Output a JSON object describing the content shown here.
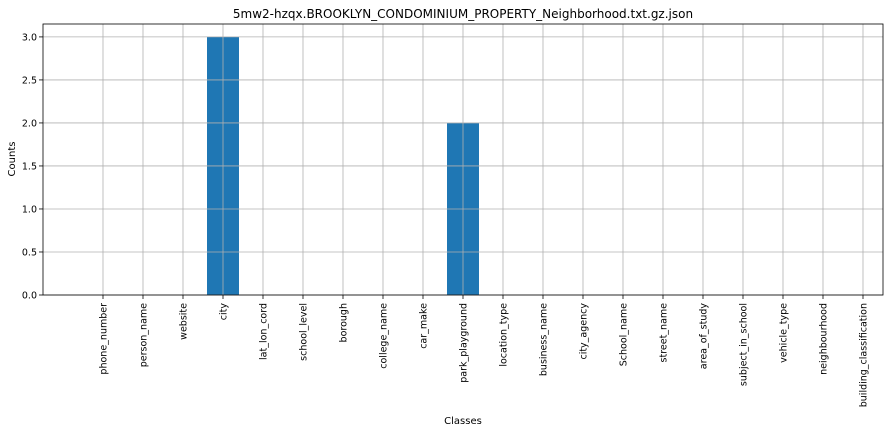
{
  "chart_data": {
    "type": "bar",
    "title": "5mw2-hzqx.BROOKLYN_CONDOMINIUM_PROPERTY_Neighborhood.txt.gz.json",
    "xlabel": "Classes",
    "ylabel": "Counts",
    "categories": [
      "phone_number",
      "person_name",
      "website",
      "city",
      "lat_lon_cord",
      "school_level",
      "borough",
      "college_name",
      "car_make",
      "park_playground",
      "location_type",
      "business_name",
      "city_agency",
      "School_name",
      "street_name",
      "area_of_study",
      "subject_in_school",
      "vehicle_type",
      "neighbourhood",
      "building_classification"
    ],
    "values": [
      0,
      0,
      0,
      3,
      0,
      0,
      0,
      0,
      0,
      2,
      0,
      0,
      0,
      0,
      0,
      0,
      0,
      0,
      0,
      0
    ],
    "ylim": [
      0,
      3.15
    ],
    "yticks": [
      "0.0",
      "0.5",
      "1.0",
      "1.5",
      "2.0",
      "2.5",
      "3.0"
    ],
    "grid": true,
    "bar_color": "#1f77b4"
  }
}
